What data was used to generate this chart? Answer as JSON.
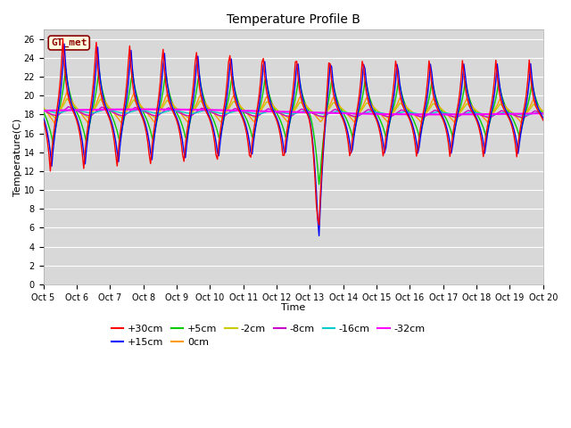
{
  "title": "Temperature Profile B",
  "xlabel": "Time",
  "ylabel": "Temperature(C)",
  "ylim": [
    0,
    27
  ],
  "yticks": [
    0,
    2,
    4,
    6,
    8,
    10,
    12,
    14,
    16,
    18,
    20,
    22,
    24,
    26
  ],
  "xtick_labels": [
    "Oct 5",
    "Oct 6",
    "Oct 7",
    "Oct 8",
    "Oct 9",
    "Oct 10Oct 11Oct 12Oct 13Oct 14Oct 15Oct 16Oct 17Oct 18Oct 19Oct 20"
  ],
  "xtick_labels_full": [
    "Oct 5",
    "Oct 6",
    "Oct 7",
    "Oct 8",
    "Oct 9",
    "Oct 10",
    "Oct 11",
    "Oct 12",
    "Oct 13",
    "Oct 14",
    "Oct 15",
    "Oct 16",
    "Oct 17",
    "Oct 18",
    "Oct 19",
    "Oct 20"
  ],
  "series_colors": {
    "+30cm": "#ff0000",
    "+15cm": "#0000ff",
    "+5cm": "#00cc00",
    "0cm": "#ff9900",
    "-2cm": "#cccc00",
    "-8cm": "#cc00cc",
    "-16cm": "#00cccc",
    "-32cm": "#ff00ff"
  },
  "fig_bg": "#ffffff",
  "plot_bg": "#d8d8d8",
  "grid_color": "#ffffff",
  "title_fontsize": 10,
  "axis_label_fontsize": 8,
  "tick_fontsize": 7,
  "legend_fontsize": 8
}
